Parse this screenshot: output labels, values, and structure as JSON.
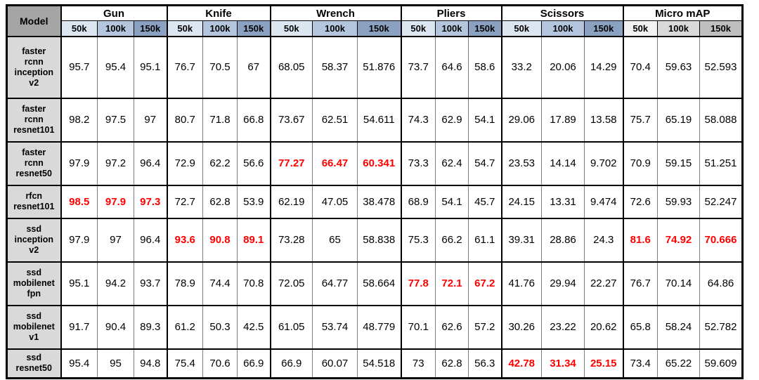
{
  "colors": {
    "header_fill": "#a5a5a5",
    "model_fill": "#d9d9d9",
    "red_text": "#fe0000",
    "blue_steps": [
      "#dce6f1",
      "#b4c6de",
      "#8ba1c1"
    ],
    "gray_steps": [
      "#f2f2f2",
      "#d9d9d9",
      "#bfbfbf"
    ]
  },
  "chart_data": {
    "type": "table",
    "corner_header": "Model",
    "checkpoints": [
      "50k",
      "100k",
      "150k"
    ],
    "column_groups": [
      {
        "label": "Gun",
        "step_style": "blue"
      },
      {
        "label": "Knife",
        "step_style": "blue"
      },
      {
        "label": "Wrench",
        "step_style": "blue"
      },
      {
        "label": "Pliers",
        "step_style": "blue"
      },
      {
        "label": "Scissors",
        "step_style": "blue"
      },
      {
        "label": "Micro mAP",
        "step_style": "gray"
      }
    ],
    "rows": [
      {
        "model": "faster rcnn inception v2",
        "model_lines": [
          "faster",
          "rcnn",
          "inception",
          "v2"
        ],
        "cells": [
          {
            "text": "95.7",
            "red": false
          },
          {
            "text": "95.4",
            "red": false
          },
          {
            "text": "95.1",
            "red": false
          },
          {
            "text": "76.7",
            "red": false
          },
          {
            "text": "70.5",
            "red": false
          },
          {
            "text": "67",
            "red": false
          },
          {
            "text": "68.05",
            "red": false
          },
          {
            "text": "58.37",
            "red": false
          },
          {
            "text": "51.876",
            "red": false
          },
          {
            "text": "73.7",
            "red": false
          },
          {
            "text": "64.6",
            "red": false
          },
          {
            "text": "58.6",
            "red": false
          },
          {
            "text": "33.2",
            "red": false
          },
          {
            "text": "20.06",
            "red": false
          },
          {
            "text": "14.29",
            "red": false
          },
          {
            "text": "70.4",
            "red": false
          },
          {
            "text": "59.63",
            "red": false
          },
          {
            "text": "52.593",
            "red": false
          }
        ]
      },
      {
        "model": "faster rcnn resnet101",
        "model_lines": [
          "faster",
          "rcnn",
          "resnet101"
        ],
        "cells": [
          {
            "text": "98.2",
            "red": false
          },
          {
            "text": "97.5",
            "red": false
          },
          {
            "text": "97",
            "red": false
          },
          {
            "text": "80.7",
            "red": false
          },
          {
            "text": "71.8",
            "red": false
          },
          {
            "text": "66.8",
            "red": false
          },
          {
            "text": "73.67",
            "red": false
          },
          {
            "text": "62.51",
            "red": false
          },
          {
            "text": "54.611",
            "red": false
          },
          {
            "text": "74.3",
            "red": false
          },
          {
            "text": "62.9",
            "red": false
          },
          {
            "text": "54.1",
            "red": false
          },
          {
            "text": "29.06",
            "red": false
          },
          {
            "text": "17.89",
            "red": false
          },
          {
            "text": "13.58",
            "red": false
          },
          {
            "text": "75.7",
            "red": false
          },
          {
            "text": "65.19",
            "red": false
          },
          {
            "text": "58.088",
            "red": false
          }
        ]
      },
      {
        "model": "faster rcnn resnet50",
        "model_lines": [
          "faster",
          "rcnn",
          "resnet50"
        ],
        "cells": [
          {
            "text": "97.9",
            "red": false
          },
          {
            "text": "97.2",
            "red": false
          },
          {
            "text": "96.4",
            "red": false
          },
          {
            "text": "72.9",
            "red": false
          },
          {
            "text": "62.2",
            "red": false
          },
          {
            "text": "56.6",
            "red": false
          },
          {
            "text": "77.27",
            "red": true
          },
          {
            "text": "66.47",
            "red": true
          },
          {
            "text": "60.341",
            "red": true
          },
          {
            "text": "73.3",
            "red": false
          },
          {
            "text": "62.4",
            "red": false
          },
          {
            "text": "54.7",
            "red": false
          },
          {
            "text": "23.53",
            "red": false
          },
          {
            "text": "14.14",
            "red": false
          },
          {
            "text": "9.702",
            "red": false
          },
          {
            "text": "70.9",
            "red": false
          },
          {
            "text": "59.15",
            "red": false
          },
          {
            "text": "51.251",
            "red": false
          }
        ]
      },
      {
        "model": "rfcn resnet101",
        "model_lines": [
          "rfcn",
          "resnet101"
        ],
        "cells": [
          {
            "text": "98.5",
            "red": true
          },
          {
            "text": "97.9",
            "red": true
          },
          {
            "text": "97.3",
            "red": true
          },
          {
            "text": "72.7",
            "red": false
          },
          {
            "text": "62.8",
            "red": false
          },
          {
            "text": "53.9",
            "red": false
          },
          {
            "text": "62.19",
            "red": false
          },
          {
            "text": "47.05",
            "red": false
          },
          {
            "text": "38.478",
            "red": false
          },
          {
            "text": "68.9",
            "red": false
          },
          {
            "text": "54.1",
            "red": false
          },
          {
            "text": "45.7",
            "red": false
          },
          {
            "text": "24.15",
            "red": false
          },
          {
            "text": "13.31",
            "red": false
          },
          {
            "text": "9.474",
            "red": false
          },
          {
            "text": "72.6",
            "red": false
          },
          {
            "text": "59.93",
            "red": false
          },
          {
            "text": "52.247",
            "red": false
          }
        ]
      },
      {
        "model": "ssd inception v2",
        "model_lines": [
          "ssd",
          "inception",
          "v2"
        ],
        "cells": [
          {
            "text": "97.9",
            "red": false
          },
          {
            "text": "97",
            "red": false
          },
          {
            "text": "96.4",
            "red": false
          },
          {
            "text": "93.6",
            "red": true
          },
          {
            "text": "90.8",
            "red": true
          },
          {
            "text": "89.1",
            "red": true
          },
          {
            "text": "73.28",
            "red": false
          },
          {
            "text": "65",
            "red": false
          },
          {
            "text": "58.838",
            "red": false
          },
          {
            "text": "75.3",
            "red": false
          },
          {
            "text": "66.2",
            "red": false
          },
          {
            "text": "61.1",
            "red": false
          },
          {
            "text": "39.31",
            "red": false
          },
          {
            "text": "28.86",
            "red": false
          },
          {
            "text": "24.3",
            "red": false
          },
          {
            "text": "81.6",
            "red": true
          },
          {
            "text": "74.92",
            "red": true
          },
          {
            "text": "70.666",
            "red": true
          }
        ]
      },
      {
        "model": "ssd mobilenet fpn",
        "model_lines": [
          "ssd",
          "mobilenet",
          "fpn"
        ],
        "cells": [
          {
            "text": "95.1",
            "red": false
          },
          {
            "text": "94.2",
            "red": false
          },
          {
            "text": "93.7",
            "red": false
          },
          {
            "text": "78.9",
            "red": false
          },
          {
            "text": "74.4",
            "red": false
          },
          {
            "text": "70.8",
            "red": false
          },
          {
            "text": "72.05",
            "red": false
          },
          {
            "text": "64.77",
            "red": false
          },
          {
            "text": "58.664",
            "red": false
          },
          {
            "text": "77.8",
            "red": true
          },
          {
            "text": "72.1",
            "red": true
          },
          {
            "text": "67.2",
            "red": true
          },
          {
            "text": "41.76",
            "red": false
          },
          {
            "text": "29.94",
            "red": false
          },
          {
            "text": "22.27",
            "red": false
          },
          {
            "text": "76.7",
            "red": false
          },
          {
            "text": "70.14",
            "red": false
          },
          {
            "text": "64.86",
            "red": false
          }
        ]
      },
      {
        "model": "ssd mobilenet v1",
        "model_lines": [
          "ssd",
          "mobilenet",
          "v1"
        ],
        "cells": [
          {
            "text": "91.7",
            "red": false
          },
          {
            "text": "90.4",
            "red": false
          },
          {
            "text": "89.3",
            "red": false
          },
          {
            "text": "61.2",
            "red": false
          },
          {
            "text": "50.3",
            "red": false
          },
          {
            "text": "42.5",
            "red": false
          },
          {
            "text": "61.05",
            "red": false
          },
          {
            "text": "53.74",
            "red": false
          },
          {
            "text": "48.779",
            "red": false
          },
          {
            "text": "70.1",
            "red": false
          },
          {
            "text": "62.6",
            "red": false
          },
          {
            "text": "57.2",
            "red": false
          },
          {
            "text": "30.26",
            "red": false
          },
          {
            "text": "23.22",
            "red": false
          },
          {
            "text": "20.62",
            "red": false
          },
          {
            "text": "65.8",
            "red": false
          },
          {
            "text": "58.24",
            "red": false
          },
          {
            "text": "52.782",
            "red": false
          }
        ]
      },
      {
        "model": "ssd resnet50",
        "model_lines": [
          "ssd",
          "resnet50"
        ],
        "cells": [
          {
            "text": "95.4",
            "red": false
          },
          {
            "text": "95",
            "red": false
          },
          {
            "text": "94.8",
            "red": false
          },
          {
            "text": "75.4",
            "red": false
          },
          {
            "text": "70.6",
            "red": false
          },
          {
            "text": "66.9",
            "red": false
          },
          {
            "text": "66.9",
            "red": false
          },
          {
            "text": "60.07",
            "red": false
          },
          {
            "text": "54.518",
            "red": false
          },
          {
            "text": "73",
            "red": false
          },
          {
            "text": "62.8",
            "red": false
          },
          {
            "text": "56.3",
            "red": false
          },
          {
            "text": "42.78",
            "red": true
          },
          {
            "text": "31.34",
            "red": true
          },
          {
            "text": "25.15",
            "red": true
          },
          {
            "text": "73.4",
            "red": false
          },
          {
            "text": "65.22",
            "red": false
          },
          {
            "text": "59.609",
            "red": false
          }
        ]
      }
    ]
  }
}
